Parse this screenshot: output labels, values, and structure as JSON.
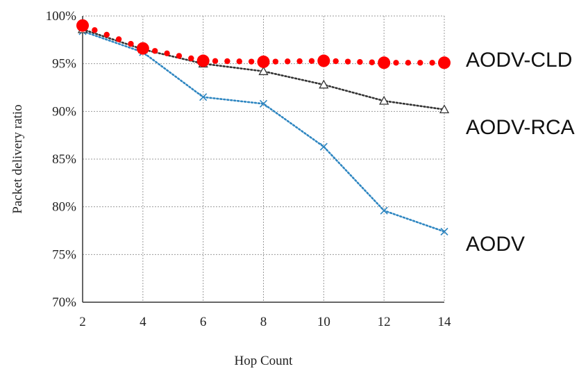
{
  "chart_data": {
    "type": "line",
    "xlabel": "Hop Count",
    "ylabel": "Packet delivery ratio",
    "x": [
      2,
      4,
      6,
      8,
      10,
      12,
      14
    ],
    "x_ticks": [
      "2",
      "4",
      "6",
      "8",
      "10",
      "12",
      "14"
    ],
    "y_ticks": [
      "70%",
      "75%",
      "80%",
      "85%",
      "90%",
      "95%",
      "100%"
    ],
    "xlim": [
      2,
      14
    ],
    "ylim": [
      70,
      100
    ],
    "grid": true,
    "legend": "labels at right end of each series",
    "series": [
      {
        "name": "AODV-CLD",
        "values": [
          99.0,
          96.6,
          95.3,
          95.2,
          95.3,
          95.1,
          95.1
        ],
        "color": "#ff0000",
        "marker": "circle",
        "line": "dotted-dots"
      },
      {
        "name": "AODV-RCA",
        "values": [
          98.6,
          96.5,
          95.0,
          94.2,
          92.8,
          91.1,
          90.2
        ],
        "color": "#333333",
        "marker": "triangle",
        "line": "dotted"
      },
      {
        "name": "AODV",
        "values": [
          98.4,
          96.2,
          91.5,
          90.8,
          86.3,
          79.6,
          77.4
        ],
        "color": "#2e86c1",
        "marker": "x",
        "line": "dotted"
      }
    ]
  }
}
